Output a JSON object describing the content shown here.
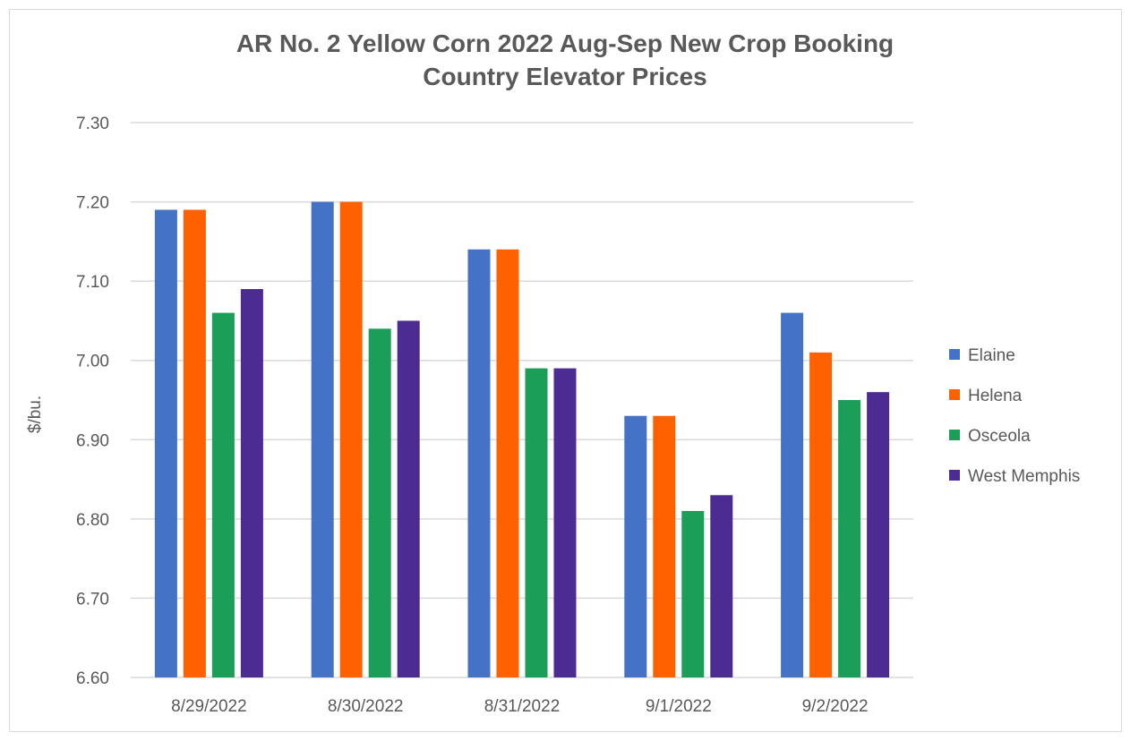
{
  "chart_data": {
    "type": "bar",
    "title": [
      "AR No. 2 Yellow Corn 2022 Aug-Sep New Crop Booking",
      "Country Elevator Prices"
    ],
    "xlabel": "",
    "ylabel": "$/bu.",
    "ylim": [
      6.6,
      7.3
    ],
    "yticks": [
      "6.60",
      "6.70",
      "6.80",
      "6.90",
      "7.00",
      "7.10",
      "7.20",
      "7.30"
    ],
    "grid": true,
    "legend": "right",
    "categories": [
      "8/29/2022",
      "8/30/2022",
      "8/31/2022",
      "9/1/2022",
      "9/2/2022"
    ],
    "series": [
      {
        "name": "Elaine",
        "color": "#4472c4",
        "values": [
          7.19,
          7.2,
          7.14,
          6.93,
          7.06
        ]
      },
      {
        "name": "Helena",
        "color": "#ff6000",
        "values": [
          7.19,
          7.2,
          7.14,
          6.93,
          7.01
        ]
      },
      {
        "name": "Osceola",
        "color": "#1b9e57",
        "values": [
          7.06,
          7.04,
          6.99,
          6.81,
          6.95
        ]
      },
      {
        "name": "West Memphis",
        "color": "#4c2c92",
        "values": [
          7.09,
          7.05,
          6.99,
          6.83,
          6.96
        ]
      }
    ]
  }
}
